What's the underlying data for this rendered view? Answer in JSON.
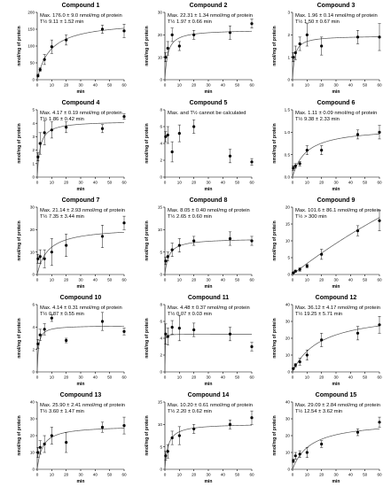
{
  "chart_data": [
    {
      "type": "scatter",
      "title": "Compound 1",
      "annotation": [
        "Max. 176.0 ± 9.0 nmol/mg of protein",
        "T½ 9.11 ± 1.52 min"
      ],
      "xlabel": "min",
      "ylabel": "nmol/mg of protein",
      "xlim": [
        0,
        60
      ],
      "ylim": [
        0,
        200
      ],
      "xticks": [
        0,
        10,
        20,
        30,
        40,
        50,
        60
      ],
      "yticks": [
        0,
        50,
        100,
        150,
        200
      ],
      "fit": {
        "max": 176.0,
        "thalf": 9.11
      },
      "points": [
        {
          "x": 0.5,
          "y": 12,
          "err": 4
        },
        {
          "x": 2,
          "y": 30,
          "err": 5
        },
        {
          "x": 5,
          "y": 60,
          "err": 15
        },
        {
          "x": 10,
          "y": 98,
          "err": 20
        },
        {
          "x": 20,
          "y": 118,
          "err": 15
        },
        {
          "x": 45,
          "y": 150,
          "err": 12
        },
        {
          "x": 60,
          "y": 145,
          "err": 20
        }
      ]
    },
    {
      "type": "scatter",
      "title": "Compound 2",
      "annotation": [
        "Max. 22.31 ± 1.34 nmol/mg of protein",
        "T½ 1.97 ± 0.66 min"
      ],
      "xlabel": "min",
      "ylabel": "nmol/mg of protein",
      "xlim": [
        0,
        60
      ],
      "ylim": [
        0,
        30
      ],
      "xticks": [
        0,
        10,
        20,
        30,
        40,
        50,
        60
      ],
      "yticks": [
        0,
        10,
        20,
        30
      ],
      "fit": {
        "max": 22.31,
        "thalf": 1.97
      },
      "points": [
        {
          "x": 0.5,
          "y": 10,
          "err": 2
        },
        {
          "x": 2,
          "y": 14,
          "err": 3
        },
        {
          "x": 5,
          "y": 20,
          "err": 3
        },
        {
          "x": 10,
          "y": 15,
          "err": 2
        },
        {
          "x": 20,
          "y": 20,
          "err": 2
        },
        {
          "x": 45,
          "y": 21,
          "err": 3
        },
        {
          "x": 60,
          "y": 25,
          "err": 2
        }
      ]
    },
    {
      "type": "scatter",
      "title": "Compound 3",
      "annotation": [
        "Max. 1.96 ± 0.14 nmol/mg of protein",
        "T½ 1.50 ± 0.67 min"
      ],
      "xlabel": "min",
      "ylabel": "nmol/mg of protein",
      "xlim": [
        0,
        60
      ],
      "ylim": [
        0,
        3
      ],
      "xticks": [
        0,
        10,
        20,
        30,
        40,
        50,
        60
      ],
      "yticks": [
        0,
        1,
        2,
        3
      ],
      "fit": {
        "max": 1.96,
        "thalf": 1.5
      },
      "points": [
        {
          "x": 0.5,
          "y": 1.0,
          "err": 0.2
        },
        {
          "x": 2,
          "y": 1.2,
          "err": 0.3
        },
        {
          "x": 5,
          "y": 1.6,
          "err": 0.3
        },
        {
          "x": 10,
          "y": 2.0,
          "err": 0.5
        },
        {
          "x": 20,
          "y": 1.5,
          "err": 0.4
        },
        {
          "x": 45,
          "y": 1.9,
          "err": 0.3
        },
        {
          "x": 60,
          "y": 1.9,
          "err": 0.6
        }
      ]
    },
    {
      "type": "scatter",
      "title": "Compound 4",
      "annotation": [
        "Max. 4.17 ± 0.19 nmol/mg of protein",
        "T½ 1.86 ± 0.42 min"
      ],
      "xlabel": "min",
      "ylabel": "nmol/mg of protein",
      "xlim": [
        0,
        60
      ],
      "ylim": [
        0,
        5
      ],
      "xticks": [
        0,
        10,
        20,
        30,
        40,
        50,
        60
      ],
      "yticks": [
        0,
        1,
        2,
        3,
        4,
        5
      ],
      "fit": {
        "max": 4.17,
        "thalf": 1.86
      },
      "points": [
        {
          "x": 0.5,
          "y": 1.5,
          "err": 0.3
        },
        {
          "x": 2,
          "y": 2.5,
          "err": 0.8
        },
        {
          "x": 5,
          "y": 3.3,
          "err": 0.9
        },
        {
          "x": 10,
          "y": 3.5,
          "err": 0.6
        },
        {
          "x": 20,
          "y": 3.7,
          "err": 0.4
        },
        {
          "x": 45,
          "y": 3.6,
          "err": 0.3
        },
        {
          "x": 60,
          "y": 4.5,
          "err": 0.2
        }
      ]
    },
    {
      "type": "scatter",
      "title": "Compound 5",
      "annotation": [
        "Max. and T½ cannot be calculated"
      ],
      "xlabel": "min",
      "ylabel": "nmol/mg of protein",
      "xlim": [
        0,
        60
      ],
      "ylim": [
        0,
        8
      ],
      "xticks": [
        0,
        10,
        20,
        30,
        40,
        50,
        60
      ],
      "yticks": [
        0,
        2,
        4,
        6,
        8
      ],
      "fit": null,
      "points": [
        {
          "x": 0.5,
          "y": 4.8,
          "err": 0.6
        },
        {
          "x": 2,
          "y": 5.0,
          "err": 1.0
        },
        {
          "x": 5,
          "y": 3.0,
          "err": 1.2
        },
        {
          "x": 10,
          "y": 5.2,
          "err": 1.0
        },
        {
          "x": 20,
          "y": 6.0,
          "err": 0.8
        },
        {
          "x": 45,
          "y": 2.5,
          "err": 0.8
        },
        {
          "x": 60,
          "y": 1.8,
          "err": 0.4
        }
      ]
    },
    {
      "type": "scatter",
      "title": "Compound 6",
      "annotation": [
        "Max. 1.11 ± 0.09 nmol/mg of protein",
        "T½ 9.38 ± 2.33 min"
      ],
      "xlabel": "min",
      "ylabel": "nmol/mg of protein",
      "xlim": [
        0,
        60
      ],
      "ylim": [
        0,
        1.5
      ],
      "xticks": [
        0,
        10,
        20,
        30,
        40,
        50,
        60
      ],
      "yticks": [
        0.0,
        0.5,
        1.0,
        1.5
      ],
      "fit": {
        "max": 1.11,
        "thalf": 9.38
      },
      "points": [
        {
          "x": 0.5,
          "y": 0.2,
          "err": 0.05
        },
        {
          "x": 2,
          "y": 0.25,
          "err": 0.05
        },
        {
          "x": 5,
          "y": 0.3,
          "err": 0.05
        },
        {
          "x": 10,
          "y": 0.6,
          "err": 0.1
        },
        {
          "x": 20,
          "y": 0.6,
          "err": 0.1
        },
        {
          "x": 45,
          "y": 0.95,
          "err": 0.1
        },
        {
          "x": 60,
          "y": 1.0,
          "err": 0.15
        }
      ]
    },
    {
      "type": "scatter",
      "title": "Compound 7",
      "annotation": [
        "Max. 21.14 ± 2.93 nmol/mg of protein",
        "T½ 7.35 ± 3.44 min"
      ],
      "xlabel": "min",
      "ylabel": "nmol/mg of protein",
      "xlim": [
        0,
        60
      ],
      "ylim": [
        0,
        30
      ],
      "xticks": [
        0,
        10,
        20,
        30,
        40,
        50,
        60
      ],
      "yticks": [
        0,
        10,
        20,
        30
      ],
      "fit": {
        "max": 21.14,
        "thalf": 7.35
      },
      "points": [
        {
          "x": 0.5,
          "y": 7,
          "err": 2
        },
        {
          "x": 2,
          "y": 8,
          "err": 3
        },
        {
          "x": 5,
          "y": 7,
          "err": 4
        },
        {
          "x": 10,
          "y": 10,
          "err": 6
        },
        {
          "x": 20,
          "y": 13,
          "err": 5
        },
        {
          "x": 45,
          "y": 17,
          "err": 5
        },
        {
          "x": 60,
          "y": 23,
          "err": 3
        }
      ]
    },
    {
      "type": "scatter",
      "title": "Compound 8",
      "annotation": [
        "Max. 8.05 ± 0.40 nmol/mg of protein",
        "T½ 2.65 ± 0.60 min"
      ],
      "xlabel": "min",
      "ylabel": "nmol/mg of protein",
      "xlim": [
        0,
        60
      ],
      "ylim": [
        0,
        15
      ],
      "xticks": [
        0,
        10,
        20,
        30,
        40,
        50,
        60
      ],
      "yticks": [
        0,
        5,
        10,
        15
      ],
      "fit": {
        "max": 8.05,
        "thalf": 2.65
      },
      "points": [
        {
          "x": 0.5,
          "y": 3,
          "err": 0.8
        },
        {
          "x": 2,
          "y": 4,
          "err": 1.0
        },
        {
          "x": 5,
          "y": 5.5,
          "err": 1.5
        },
        {
          "x": 10,
          "y": 6.5,
          "err": 1.5
        },
        {
          "x": 20,
          "y": 7.5,
          "err": 1.0
        },
        {
          "x": 45,
          "y": 8,
          "err": 1.5
        },
        {
          "x": 60,
          "y": 7.5,
          "err": 1.0
        }
      ]
    },
    {
      "type": "scatter",
      "title": "Compound 9",
      "annotation": [
        "Max. 101.6 ± 86.1 nmol/mg of protein",
        "T½ > 300 min"
      ],
      "xlabel": "min",
      "ylabel": "nmol/mg of protein",
      "xlim": [
        0,
        60
      ],
      "ylim": [
        0,
        20
      ],
      "xticks": [
        0,
        10,
        20,
        30,
        40,
        50,
        60
      ],
      "yticks": [
        0,
        5,
        10,
        15,
        20
      ],
      "fit": {
        "max": 101.6,
        "thalf": 300
      },
      "points": [
        {
          "x": 0.5,
          "y": 0.5,
          "err": 0.2
        },
        {
          "x": 2,
          "y": 1.0,
          "err": 0.3
        },
        {
          "x": 5,
          "y": 1.5,
          "err": 0.5
        },
        {
          "x": 10,
          "y": 2.5,
          "err": 0.5
        },
        {
          "x": 20,
          "y": 6,
          "err": 1.5
        },
        {
          "x": 45,
          "y": 13,
          "err": 1.5
        },
        {
          "x": 60,
          "y": 16,
          "err": 3
        }
      ]
    },
    {
      "type": "scatter",
      "title": "Compound 10",
      "annotation": [
        "Max. 4.14 ± 0.31 nmol/mg of protein",
        "T½ 0.87 ± 0.55 min"
      ],
      "xlabel": "min",
      "ylabel": "nmol/mg of protein",
      "xlim": [
        0,
        60
      ],
      "ylim": [
        0,
        6
      ],
      "xticks": [
        0,
        10,
        20,
        30,
        40,
        50,
        60
      ],
      "yticks": [
        0,
        2,
        4,
        6
      ],
      "fit": {
        "max": 4.14,
        "thalf": 0.87
      },
      "points": [
        {
          "x": 0.5,
          "y": 2.5,
          "err": 0.4
        },
        {
          "x": 2,
          "y": 3.3,
          "err": 0.5
        },
        {
          "x": 5,
          "y": 3.8,
          "err": 0.5
        },
        {
          "x": 10,
          "y": 4.8,
          "err": 0.3
        },
        {
          "x": 20,
          "y": 2.8,
          "err": 0.2
        },
        {
          "x": 45,
          "y": 4.5,
          "err": 0.8
        },
        {
          "x": 60,
          "y": 3.6,
          "err": 0.3
        }
      ]
    },
    {
      "type": "scatter",
      "title": "Compound 11",
      "annotation": [
        "Max. 4.48 ± 0.37 nmol/mg of protein",
        "T½ 0.07 ± 0.03 min"
      ],
      "xlabel": "min",
      "ylabel": "nmol/mg of protein",
      "xlim": [
        0,
        60
      ],
      "ylim": [
        0,
        8
      ],
      "xticks": [
        0,
        10,
        20,
        30,
        40,
        50,
        60
      ],
      "yticks": [
        0,
        2,
        4,
        6,
        8
      ],
      "fit": {
        "max": 4.48,
        "thalf": 0.07
      },
      "points": [
        {
          "x": 0.5,
          "y": 4.5,
          "err": 1.2
        },
        {
          "x": 2,
          "y": 4.2,
          "err": 1.0
        },
        {
          "x": 5,
          "y": 5.3,
          "err": 0.8
        },
        {
          "x": 10,
          "y": 5.2,
          "err": 1.5
        },
        {
          "x": 20,
          "y": 5.0,
          "err": 0.8
        },
        {
          "x": 45,
          "y": 4.5,
          "err": 0.8
        },
        {
          "x": 60,
          "y": 3.0,
          "err": 0.5
        }
      ]
    },
    {
      "type": "scatter",
      "title": "Compound 12",
      "annotation": [
        "Max. 36.12 ± 4.17 nmol/mg of protein",
        "T½ 19.25 ± 5.71 min"
      ],
      "xlabel": "min",
      "ylabel": "nmol/mg of protein",
      "xlim": [
        0,
        60
      ],
      "ylim": [
        0,
        40
      ],
      "xticks": [
        0,
        10,
        20,
        30,
        40,
        50,
        60
      ],
      "yticks": [
        0,
        10,
        20,
        30,
        40
      ],
      "fit": {
        "max": 36.12,
        "thalf": 19.25
      },
      "points": [
        {
          "x": 0.5,
          "y": 2,
          "err": 0.5
        },
        {
          "x": 2,
          "y": 4,
          "err": 1
        },
        {
          "x": 5,
          "y": 6,
          "err": 2
        },
        {
          "x": 10,
          "y": 10,
          "err": 3
        },
        {
          "x": 20,
          "y": 19,
          "err": 4
        },
        {
          "x": 45,
          "y": 23,
          "err": 4
        },
        {
          "x": 60,
          "y": 28,
          "err": 5
        }
      ]
    },
    {
      "type": "scatter",
      "title": "Compound 13",
      "annotation": [
        "Max. 25.90 ± 2.41 nmol/mg of protein",
        "T½ 3.60 ± 1.47 min"
      ],
      "xlabel": "min",
      "ylabel": "nmol/mg of protein",
      "xlim": [
        0,
        60
      ],
      "ylim": [
        0,
        40
      ],
      "xticks": [
        0,
        10,
        20,
        30,
        40,
        50,
        60
      ],
      "yticks": [
        0,
        10,
        20,
        30,
        40
      ],
      "fit": {
        "max": 25.9,
        "thalf": 3.6
      },
      "points": [
        {
          "x": 0.5,
          "y": 10,
          "err": 3
        },
        {
          "x": 2,
          "y": 13,
          "err": 4
        },
        {
          "x": 5,
          "y": 15,
          "err": 5
        },
        {
          "x": 10,
          "y": 20,
          "err": 5
        },
        {
          "x": 20,
          "y": 16,
          "err": 6
        },
        {
          "x": 45,
          "y": 25,
          "err": 3
        },
        {
          "x": 60,
          "y": 26,
          "err": 5
        }
      ]
    },
    {
      "type": "scatter",
      "title": "Compound 14",
      "annotation": [
        "Max. 10.20 ± 0.61 nmol/mg of protein",
        "T½ 2.20 ± 0.62 min"
      ],
      "xlabel": "min",
      "ylabel": "nmol/mg of protein",
      "xlim": [
        0,
        60
      ],
      "ylim": [
        0,
        15
      ],
      "xticks": [
        0,
        10,
        20,
        30,
        40,
        50,
        60
      ],
      "yticks": [
        0,
        5,
        10,
        15
      ],
      "fit": {
        "max": 10.2,
        "thalf": 2.2
      },
      "points": [
        {
          "x": 0.5,
          "y": 3,
          "err": 1
        },
        {
          "x": 2,
          "y": 4,
          "err": 1.5
        },
        {
          "x": 5,
          "y": 7,
          "err": 1.5
        },
        {
          "x": 10,
          "y": 7.5,
          "err": 2
        },
        {
          "x": 20,
          "y": 9,
          "err": 1
        },
        {
          "x": 45,
          "y": 10,
          "err": 1
        },
        {
          "x": 60,
          "y": 11.5,
          "err": 1.5
        }
      ]
    },
    {
      "type": "scatter",
      "title": "Compound 15",
      "annotation": [
        "Max. 29.09 ± 2.84 nmol/mg of protein",
        "T½ 12.54 ± 3.62 min"
      ],
      "xlabel": "min",
      "ylabel": "nmol/mg of protein",
      "xlim": [
        0,
        60
      ],
      "ylim": [
        0,
        40
      ],
      "xticks": [
        0,
        10,
        20,
        30,
        40,
        50,
        60
      ],
      "yticks": [
        0,
        10,
        20,
        30,
        40
      ],
      "fit": {
        "max": 29.09,
        "thalf": 12.54
      },
      "points": [
        {
          "x": 0.5,
          "y": 5,
          "err": 1
        },
        {
          "x": 2,
          "y": 8,
          "err": 2
        },
        {
          "x": 5,
          "y": 9,
          "err": 2
        },
        {
          "x": 10,
          "y": 10,
          "err": 3
        },
        {
          "x": 20,
          "y": 15,
          "err": 2
        },
        {
          "x": 45,
          "y": 22,
          "err": 2
        },
        {
          "x": 60,
          "y": 28,
          "err": 3
        }
      ]
    }
  ]
}
